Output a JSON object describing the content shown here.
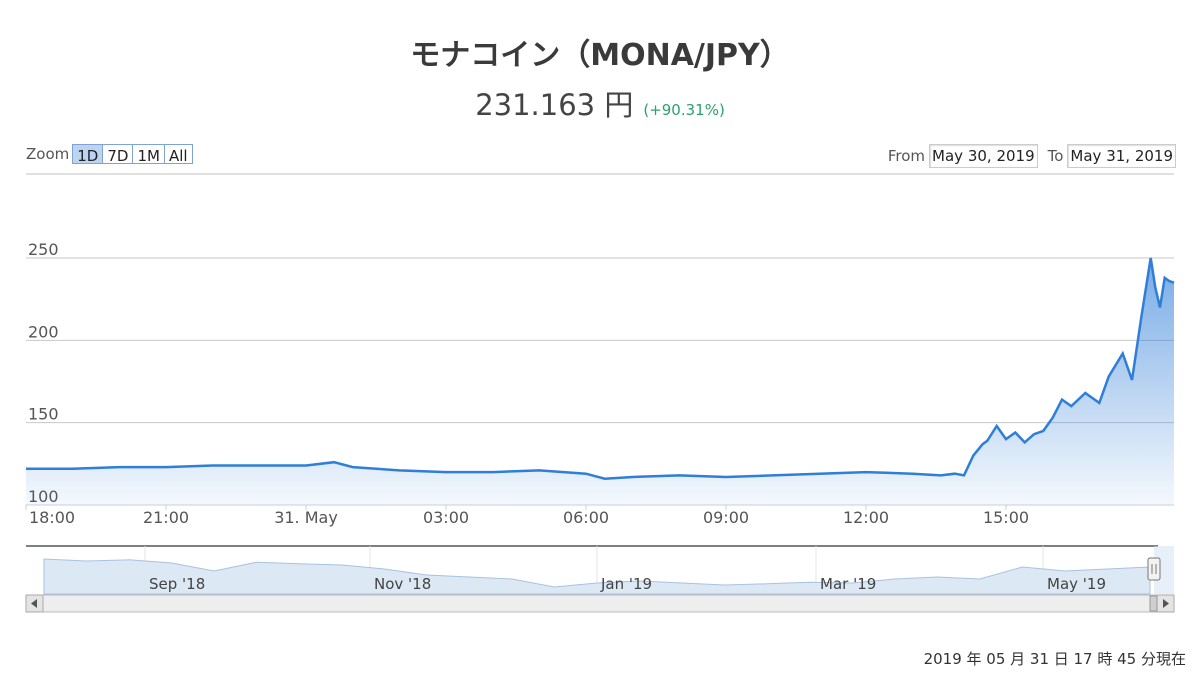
{
  "header": {
    "title": "モナコイン（MONA/JPY）",
    "price": "231.163 円",
    "change": "(+90.31%)",
    "change_color": "#2aa36b"
  },
  "zoom": {
    "label": "Zoom",
    "buttons": [
      "1D",
      "7D",
      "1M",
      "All"
    ],
    "active": "1D"
  },
  "range": {
    "from_label": "From",
    "from_value": "May 30, 2019",
    "to_label": "To",
    "to_value": "May 31, 2019"
  },
  "chart_data": {
    "type": "area",
    "line_color": "#2f7ed8",
    "ylim": [
      100,
      280
    ],
    "y_ticks": [
      100,
      150,
      200,
      250
    ],
    "x_ticks": [
      "18:00",
      "21:00",
      "31. May",
      "03:00",
      "06:00",
      "09:00",
      "12:00",
      "15:00"
    ],
    "xlim_hours": [
      18,
      42.6
    ],
    "series": [
      {
        "x": [
          18.0,
          19.0,
          20.0,
          21.0,
          22.0,
          23.0,
          24.0,
          24.6,
          25.0,
          26.0,
          27.0,
          28.0,
          29.0,
          30.0,
          30.4,
          31.0,
          32.0,
          33.0,
          34.0,
          35.0,
          36.0,
          37.0,
          37.6,
          37.9,
          38.1,
          38.3,
          38.5,
          38.6,
          38.8,
          39.0,
          39.2,
          39.4,
          39.6,
          39.8,
          40.0,
          40.2,
          40.4,
          40.7,
          41.0,
          41.2,
          41.5,
          41.7,
          41.9,
          42.1,
          42.2,
          42.3,
          42.4,
          42.5,
          42.6
        ],
        "y": [
          122,
          122,
          123,
          123,
          124,
          124,
          124,
          126,
          123,
          121,
          120,
          120,
          121,
          119,
          116,
          117,
          118,
          117,
          118,
          119,
          120,
          119,
          118,
          119,
          118,
          130,
          137,
          139,
          148,
          140,
          144,
          138,
          143,
          145,
          153,
          164,
          160,
          168,
          162,
          178,
          192,
          176,
          214,
          250,
          232,
          220,
          238,
          236,
          235
        ]
      }
    ],
    "navigator": {
      "labels": [
        "Sep '18",
        "Nov '18",
        "Jan '19",
        "Mar '19",
        "May '19"
      ],
      "values": [
        0.8,
        0.75,
        0.78,
        0.7,
        0.5,
        0.72,
        0.68,
        0.65,
        0.55,
        0.4,
        0.35,
        0.3,
        0.1,
        0.2,
        0.25,
        0.2,
        0.15,
        0.18,
        0.22,
        0.2,
        0.3,
        0.35,
        0.3,
        0.6,
        0.5,
        0.55,
        0.6
      ]
    }
  },
  "footer": {
    "timestamp": "2019 年 05 月 31 日  17 時 45 分現在"
  }
}
